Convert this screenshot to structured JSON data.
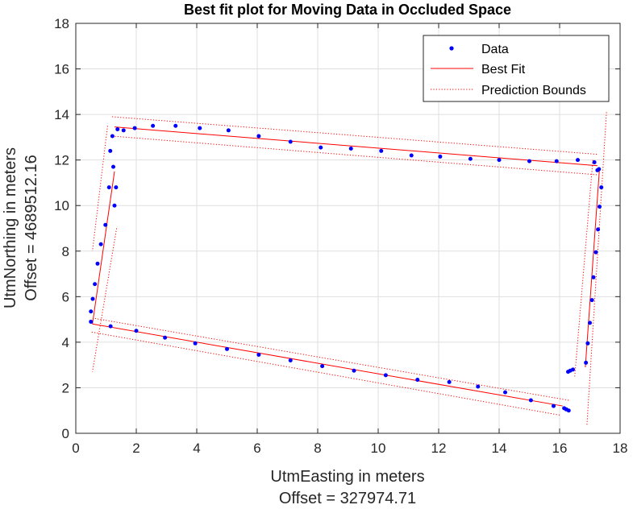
{
  "chart_data": {
    "type": "scatter",
    "title": "Best fit plot for Moving Data in Occluded Space",
    "xlabel": "UtmEasting in meters",
    "xlabel_offset": "Offset = 327974.71",
    "ylabel": "UtmNorthing in meters",
    "ylabel_offset": "Offset = 4689512.16",
    "xlim": [
      0,
      18
    ],
    "ylim": [
      0,
      18
    ],
    "xticks": [
      0,
      2,
      4,
      6,
      8,
      10,
      12,
      14,
      16,
      18
    ],
    "yticks": [
      0,
      2,
      4,
      6,
      8,
      10,
      12,
      14,
      16,
      18
    ],
    "grid": true,
    "legend_position": "top-right",
    "legend": [
      "Data",
      "Best Fit",
      "Prediction Bounds"
    ],
    "colors": {
      "data": "#0000ff",
      "fit": "#ff0000",
      "bounds": "#ff0000",
      "grid": "#dfdfdf",
      "axis": "#262626"
    },
    "series": [
      {
        "name": "Data",
        "style": "points",
        "x": [
          0.5,
          0.56,
          0.63,
          0.72,
          0.83,
          0.98,
          1.1,
          1.14,
          1.21,
          1.24,
          1.28,
          1.33,
          1.38,
          1.58,
          1.95,
          2.55,
          3.3,
          4.1,
          5.05,
          6.05,
          7.1,
          8.1,
          9.1,
          10.1,
          11.1,
          12.05,
          13.05,
          14.0,
          15.0,
          15.9,
          16.6,
          17.15,
          17.25,
          17.3,
          17.38,
          17.32,
          17.27,
          17.2,
          17.12,
          17.07,
          17.0,
          16.93,
          16.87,
          16.44,
          16.35,
          16.28,
          16.3,
          16.22,
          16.15,
          15.8,
          15.05,
          14.2,
          13.3,
          12.35,
          11.3,
          10.25,
          9.2,
          8.15,
          7.1,
          6.05,
          5.0,
          3.95,
          2.95,
          2.0,
          1.15,
          0.5
        ],
        "y": [
          5.35,
          5.9,
          6.55,
          7.45,
          8.3,
          9.15,
          10.8,
          12.4,
          13.05,
          11.7,
          10.0,
          10.8,
          13.35,
          13.3,
          13.4,
          13.5,
          13.5,
          13.4,
          13.3,
          13.05,
          12.8,
          12.55,
          12.5,
          12.4,
          12.2,
          12.15,
          12.05,
          12.0,
          11.95,
          11.95,
          12.0,
          11.9,
          11.55,
          11.6,
          10.8,
          9.95,
          8.95,
          7.95,
          6.85,
          5.85,
          4.85,
          3.95,
          3.1,
          2.8,
          2.75,
          2.7,
          1.0,
          1.05,
          1.1,
          1.2,
          1.45,
          1.8,
          2.05,
          2.25,
          2.35,
          2.55,
          2.75,
          2.95,
          3.2,
          3.45,
          3.7,
          3.95,
          4.2,
          4.5,
          4.7,
          4.9
        ]
      },
      {
        "name": "Best Fit",
        "style": "line",
        "segments": [
          [
            [
              1.28,
              13.45
            ],
            [
              17.25,
              11.75
            ]
          ],
          [
            [
              17.32,
              11.65
            ],
            [
              16.85,
              2.9
            ]
          ],
          [
            [
              16.1,
              1.2
            ],
            [
              0.55,
              4.8
            ]
          ],
          [
            [
              0.55,
              4.8
            ],
            [
              1.28,
              11.5
            ]
          ]
        ]
      },
      {
        "name": "Prediction Bounds",
        "style": "dotted",
        "segments": [
          [
            [
              1.2,
              13.9
            ],
            [
              17.25,
              12.25
            ]
          ],
          [
            [
              1.2,
              13.05
            ],
            [
              17.25,
              11.35
            ]
          ],
          [
            [
              17.55,
              14.1
            ],
            [
              16.9,
              0.3
            ]
          ],
          [
            [
              17.1,
              12.0
            ],
            [
              16.5,
              2.5
            ]
          ],
          [
            [
              16.3,
              1.45
            ],
            [
              0.6,
              5.05
            ]
          ],
          [
            [
              16.0,
              0.8
            ],
            [
              0.5,
              4.45
            ]
          ],
          [
            [
              1.05,
              13.5
            ],
            [
              0.55,
              8.0
            ]
          ],
          [
            [
              1.35,
              9.0
            ],
            [
              0.55,
              2.7
            ]
          ]
        ]
      }
    ]
  }
}
